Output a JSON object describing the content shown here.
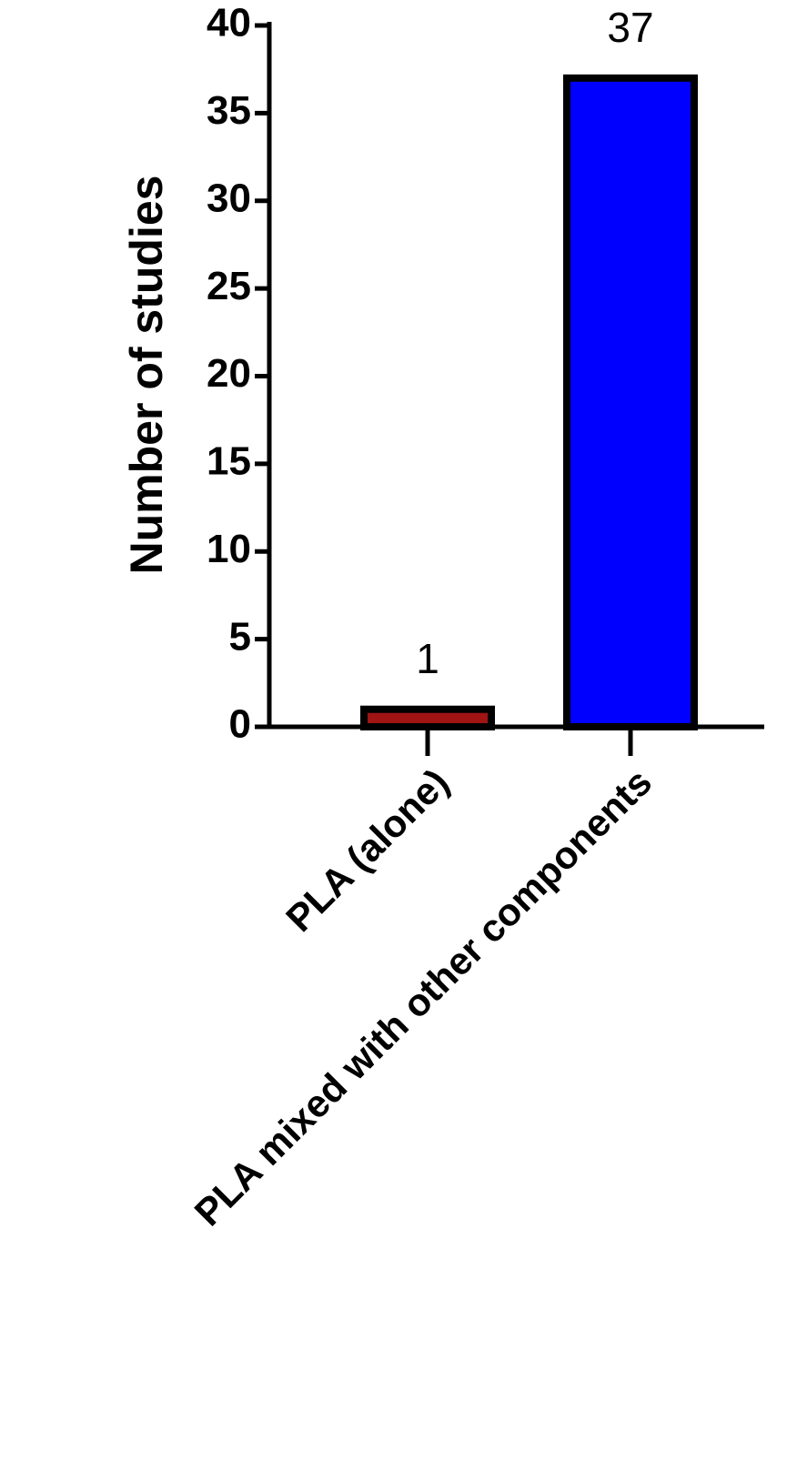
{
  "chart_data": {
    "type": "bar",
    "y_label": "Number of studies",
    "categories": [
      "PLA (alone)",
      "PLA mixed with other components"
    ],
    "values": [
      1,
      37
    ],
    "colors": [
      "#a01414",
      "#0000ff"
    ],
    "ylim": [
      0,
      40
    ],
    "yticks": [
      0,
      5,
      10,
      15,
      20,
      25,
      30,
      35,
      40
    ],
    "grid": false
  }
}
